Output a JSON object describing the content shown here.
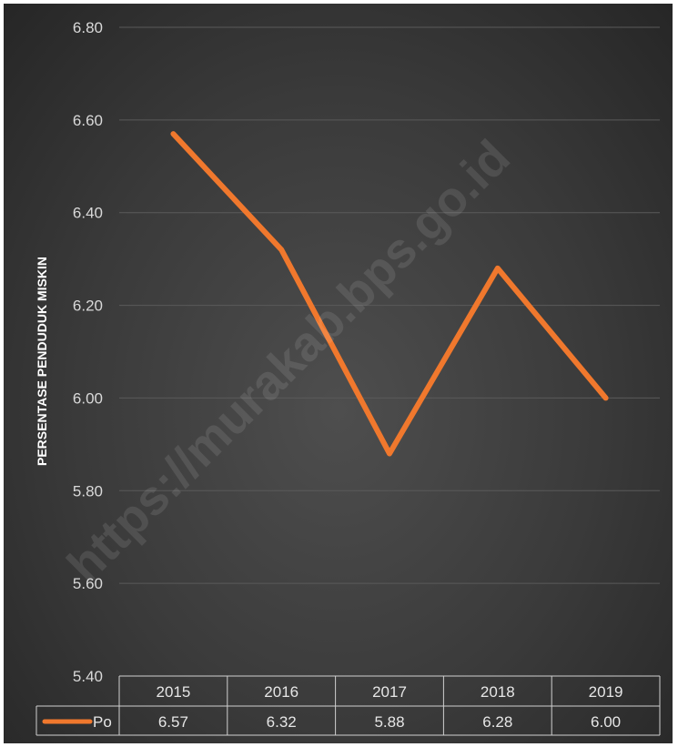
{
  "chart_data": {
    "type": "line",
    "ylabel": "PERSENTASE  PENDUDUK MISKIN",
    "ylim": [
      5.4,
      6.8
    ],
    "y_ticks": [
      "6.80",
      "6.60",
      "6.40",
      "6.20",
      "6.00",
      "5.80",
      "5.60",
      "5.40"
    ],
    "categories": [
      "2015",
      "2016",
      "2017",
      "2018",
      "2019"
    ],
    "series": [
      {
        "name": "Po",
        "values": [
          6.57,
          6.32,
          5.88,
          6.28,
          6.0
        ],
        "value_labels": [
          "6.57",
          "6.32",
          "5.88",
          "6.28",
          "6.00"
        ]
      }
    ],
    "legend_position": "data-table",
    "grid": true,
    "data_table": true,
    "colors": {
      "line": "#f0782d",
      "background": "#3c3c3c",
      "grid": "#5a5a5a"
    }
  },
  "watermark": "https://murakab.bps.go.id"
}
